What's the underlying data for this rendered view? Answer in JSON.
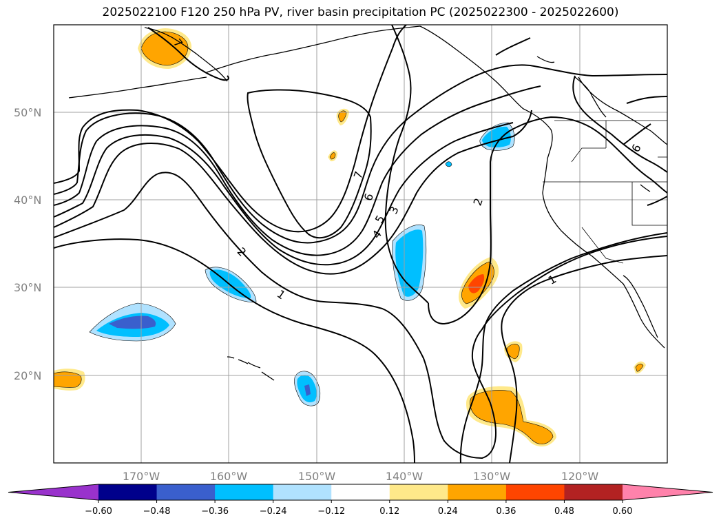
{
  "title": "2025022100 F120 250 hPa PV, river basin precipitation PC (2025022300 - 2025022600)",
  "lat_labels": [
    {
      "lat": 50,
      "text": "50°N"
    },
    {
      "lat": 40,
      "text": "40°N"
    },
    {
      "lat": 30,
      "text": "30°N"
    },
    {
      "lat": 20,
      "text": "20°N"
    }
  ],
  "lon_labels": [
    {
      "lon": -170,
      "text": "170°W"
    },
    {
      "lon": -160,
      "text": "160°W"
    },
    {
      "lon": -150,
      "text": "150°W"
    },
    {
      "lon": -140,
      "text": "140°W"
    },
    {
      "lon": -130,
      "text": "130°W"
    },
    {
      "lon": -120,
      "text": "120°W"
    }
  ],
  "contour_labels": [
    "1",
    "2",
    "3",
    "4",
    "5",
    "6",
    "7"
  ],
  "colorbar": {
    "ticks": [
      "−0.60",
      "−0.48",
      "−0.36",
      "−0.24",
      "−0.12",
      "0.12",
      "0.24",
      "0.36",
      "0.48",
      "0.60"
    ],
    "colors": [
      "#9932cc",
      "#00008b",
      "#3a5fcd",
      "#00bfff",
      "#b0e2ff",
      "#ffffff",
      "#ffe98a",
      "#ffa500",
      "#ff4500",
      "#b22222",
      "#ff82ab"
    ]
  }
}
